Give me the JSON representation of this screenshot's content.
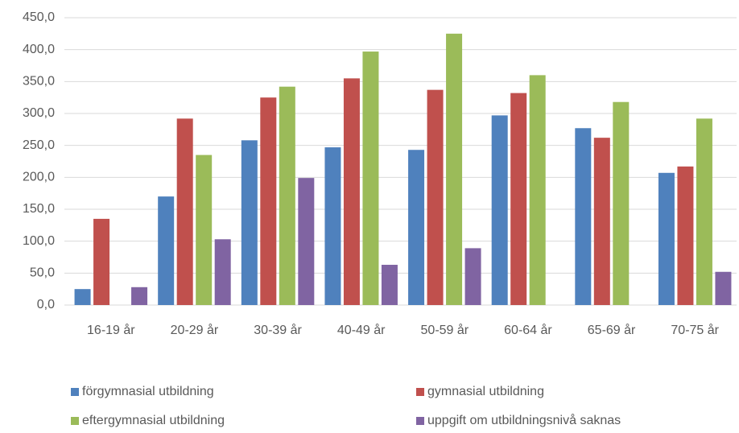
{
  "chart_data": {
    "type": "bar",
    "categories": [
      "16-19 år",
      "20-29 år",
      "30-39 år",
      "40-49 år",
      "50-59 år",
      "60-64 år",
      "65-69 år",
      "70-75 år"
    ],
    "series": [
      {
        "name": "förgymnasial utbildning",
        "color": "#4f81bd",
        "values": [
          25,
          170,
          258,
          247,
          243,
          297,
          277,
          207
        ]
      },
      {
        "name": "gymnasial utbildning",
        "color": "#c0504d",
        "values": [
          135,
          292,
          325,
          355,
          337,
          332,
          262,
          217
        ]
      },
      {
        "name": "eftergymnasial utbildning",
        "color": "#9bbb59",
        "values": [
          null,
          235,
          342,
          397,
          425,
          360,
          318,
          292
        ]
      },
      {
        "name": "uppgift om utbildningsnivå saknas",
        "color": "#8064a2",
        "values": [
          28,
          103,
          199,
          63,
          89,
          null,
          null,
          52
        ]
      }
    ],
    "ylim": [
      0,
      450
    ],
    "yticks": [
      {
        "value": 0,
        "label": "0,0"
      },
      {
        "value": 50,
        "label": "50,0"
      },
      {
        "value": 100,
        "label": "100,0"
      },
      {
        "value": 150,
        "label": "150,0"
      },
      {
        "value": 200,
        "label": "200,0"
      },
      {
        "value": 250,
        "label": "250,0"
      },
      {
        "value": 300,
        "label": "300,0"
      },
      {
        "value": 350,
        "label": "350,0"
      },
      {
        "value": 400,
        "label": "400,0"
      },
      {
        "value": 450,
        "label": "450,0"
      }
    ],
    "grid": true
  }
}
